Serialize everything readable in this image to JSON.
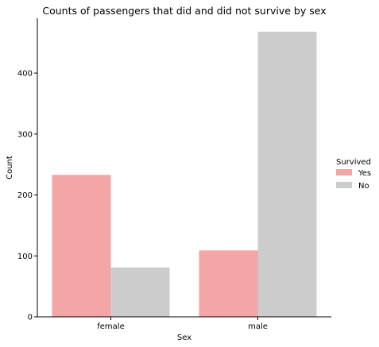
{
  "chart_data": {
    "type": "bar",
    "title": "Counts of passengers that did and did not survive by sex",
    "xlabel": "Sex",
    "ylabel": "Count",
    "categories": [
      "female",
      "male"
    ],
    "series": [
      {
        "name": "Yes",
        "values": [
          233,
          109
        ],
        "color": "#f4a6a6"
      },
      {
        "name": "No",
        "values": [
          81,
          468
        ],
        "color": "#cccccc"
      }
    ],
    "ylim": [
      0,
      490
    ],
    "yticks": [
      0,
      100,
      200,
      300,
      400
    ],
    "legend": {
      "title": "Survived",
      "position": "right"
    },
    "grid": false
  }
}
